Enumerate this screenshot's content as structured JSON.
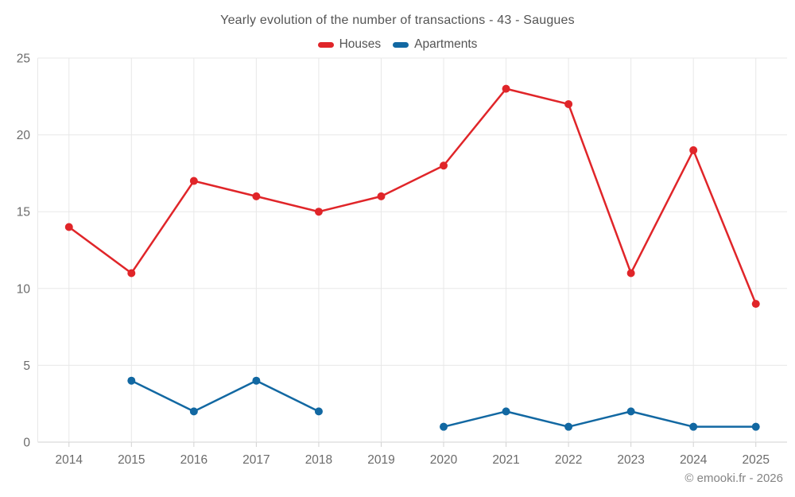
{
  "title": "Yearly evolution of the number of transactions - 43 - Saugues",
  "legend": [
    {
      "label": "Houses",
      "color": "#e02529"
    },
    {
      "label": "Apartments",
      "color": "#1268a2"
    }
  ],
  "footer": "© emooki.fr - 2026",
  "colors": {
    "grid": "#e8e8e8",
    "axis": "#d2d2d2",
    "title_text": "#545454",
    "axis_text": "#6b6b6b",
    "footer_text": "#848484"
  },
  "chart_data": {
    "type": "line",
    "title": "Yearly evolution of the number of transactions - 43 - Saugues",
    "categories": [
      "2014",
      "2015",
      "2016",
      "2017",
      "2018",
      "2019",
      "2020",
      "2021",
      "2022",
      "2023",
      "2024",
      "2025"
    ],
    "series": [
      {
        "name": "Houses",
        "color": "#e02529",
        "values": [
          14,
          11,
          17,
          16,
          15,
          16,
          18,
          23,
          22,
          11,
          19,
          9
        ]
      },
      {
        "name": "Apartments",
        "color": "#1268a2",
        "values": [
          null,
          4,
          2,
          4,
          2,
          null,
          1,
          2,
          1,
          2,
          1,
          1
        ]
      }
    ],
    "xlabel": "",
    "ylabel": "",
    "ylim": [
      0,
      25
    ],
    "yticks": [
      0,
      5,
      10,
      15,
      20,
      25
    ],
    "grid": true,
    "legend_position": "top",
    "marker_radius": 5,
    "line_width": 2.5
  }
}
